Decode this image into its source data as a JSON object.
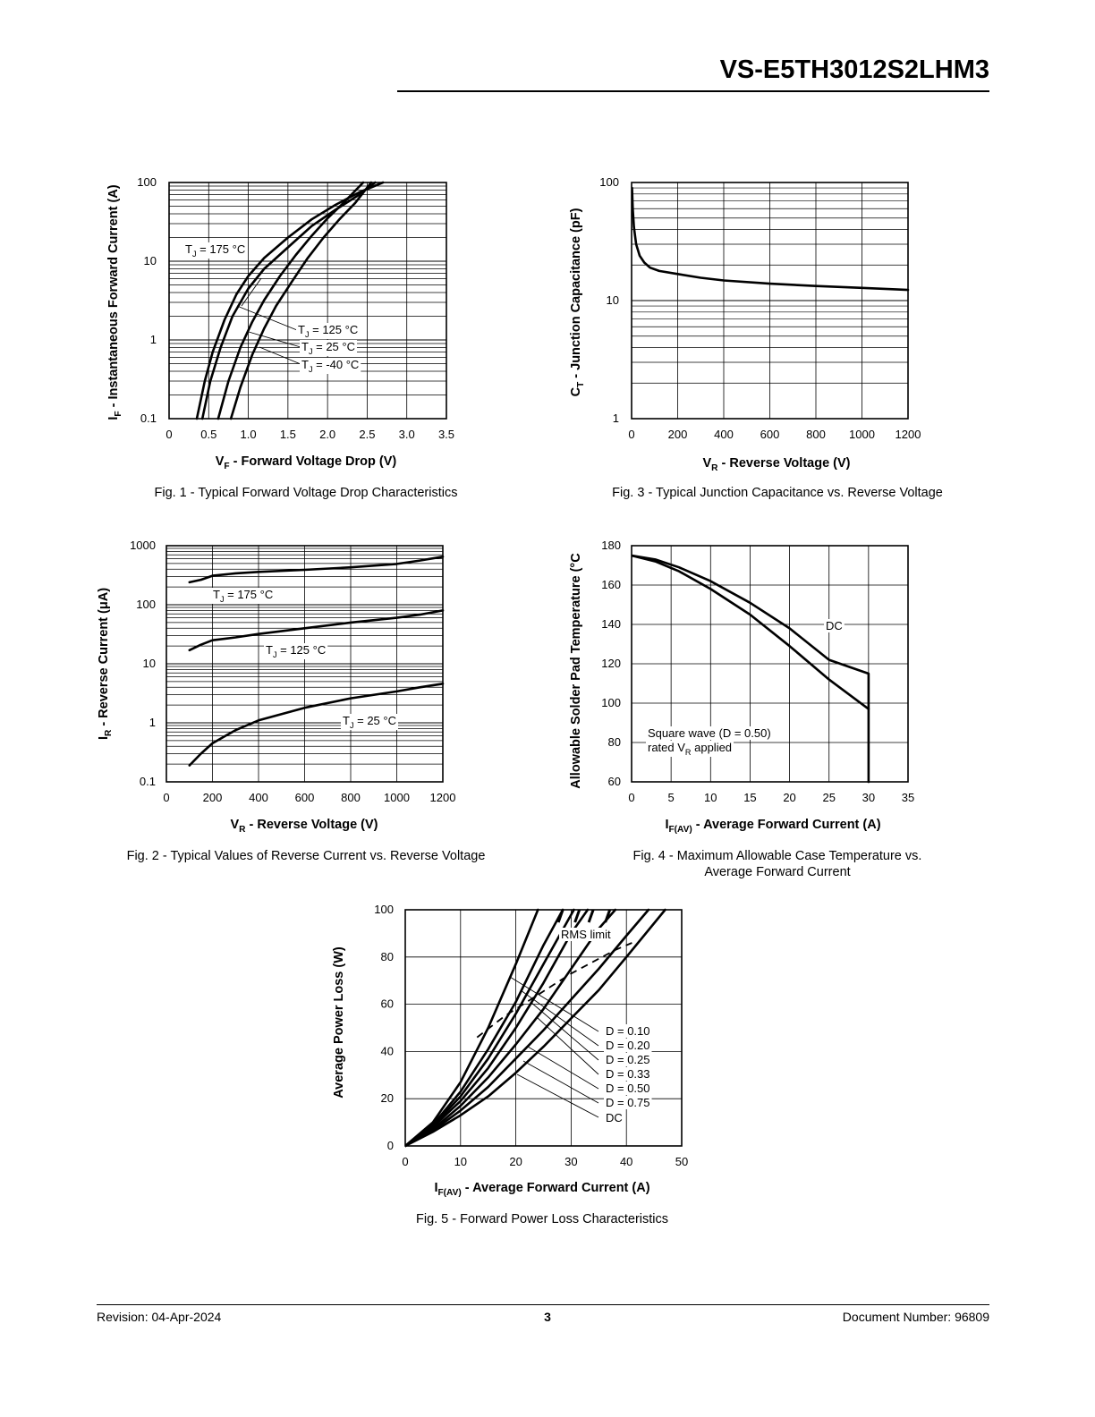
{
  "header": {
    "part_number": "VS-E5TH3012S2LHM3"
  },
  "footer": {
    "revision": "Revision: 04-Apr-2024",
    "page": "3",
    "document_number": "Document Number: 96809"
  },
  "chart_data": [
    {
      "id": "fig1",
      "type": "line",
      "caption": "Fig. 1 - Typical Forward Voltage Drop Characteristics",
      "xlabel": {
        "main": "V",
        "sub": "F",
        "rest": " - Forward Voltage Drop (V)"
      },
      "ylabel": {
        "main": "I",
        "sub": "F",
        "rest": " - Instantaneous Forward Current (A)"
      },
      "xlim": [
        0,
        3.5
      ],
      "ylim": [
        0.1,
        100
      ],
      "ylog": true,
      "xticks": [
        "0",
        "0.5",
        "1.0",
        "1.5",
        "2.0",
        "2.5",
        "3.0",
        "3.5"
      ],
      "yticks": [
        "0.1",
        "1",
        "10",
        "100"
      ],
      "series": [
        {
          "name": "TJ = 175 °C",
          "x": [
            0.35,
            0.45,
            0.55,
            0.7,
            0.85,
            1.0,
            1.2,
            1.5,
            1.8,
            2.1,
            2.4,
            2.7
          ],
          "y": [
            0.1,
            0.3,
            0.7,
            1.8,
            3.8,
            6.5,
            11,
            20,
            34,
            52,
            75,
            100
          ]
        },
        {
          "name": "TJ = 125 °C",
          "x": [
            0.42,
            0.52,
            0.65,
            0.8,
            1.0,
            1.2,
            1.5,
            1.8,
            2.1,
            2.4,
            2.6
          ],
          "y": [
            0.1,
            0.3,
            0.8,
            2,
            4.5,
            8,
            15,
            28,
            45,
            70,
            100
          ]
        },
        {
          "name": "TJ = 25 °C",
          "x": [
            0.62,
            0.75,
            0.9,
            1.05,
            1.2,
            1.4,
            1.6,
            1.8,
            2.0,
            2.2,
            2.45
          ],
          "y": [
            0.1,
            0.3,
            0.8,
            1.7,
            3.2,
            6.5,
            12,
            21,
            35,
            55,
            100
          ]
        },
        {
          "name": "TJ = -40 °C",
          "x": [
            0.78,
            0.9,
            1.05,
            1.2,
            1.35,
            1.55,
            1.75,
            1.95,
            2.15,
            2.35,
            2.55
          ],
          "y": [
            0.1,
            0.25,
            0.65,
            1.4,
            2.7,
            5.5,
            11,
            20,
            34,
            55,
            100
          ]
        }
      ],
      "labels": [
        {
          "pre": "T",
          "sub": "J",
          "post": " = 175 °C"
        },
        {
          "pre": "T",
          "sub": "J",
          "post": " = 125 °C"
        },
        {
          "pre": "T",
          "sub": "J",
          "post": " = 25 °C"
        },
        {
          "pre": "T",
          "sub": "J",
          "post": " = -40 °C"
        }
      ]
    },
    {
      "id": "fig3",
      "type": "line",
      "caption": "Fig. 3 - Typical Junction Capacitance vs. Reverse Voltage",
      "xlabel": {
        "main": "V",
        "sub": "R",
        "rest": " - Reverse Voltage (V)"
      },
      "ylabel": {
        "main": "C",
        "sub": "T",
        "rest": " - Junction Capacitance (pF)"
      },
      "xlim": [
        0,
        1200
      ],
      "ylim": [
        1,
        100
      ],
      "ylog": true,
      "xticks": [
        "0",
        "200",
        "400",
        "600",
        "800",
        "1000",
        "1200"
      ],
      "yticks": [
        "1",
        "10",
        "100"
      ],
      "series": [
        {
          "name": "CT",
          "x": [
            2,
            5,
            10,
            20,
            35,
            55,
            80,
            120,
            200,
            300,
            400,
            600,
            800,
            1000,
            1200
          ],
          "y": [
            90,
            60,
            42,
            30,
            24,
            21,
            19,
            17.8,
            16.8,
            15.6,
            14.8,
            13.9,
            13.3,
            12.8,
            12.3
          ]
        }
      ]
    },
    {
      "id": "fig2",
      "type": "line",
      "caption": "Fig. 2 - Typical Values of Reverse Current vs. Reverse Voltage",
      "xlabel": {
        "main": "V",
        "sub": "R",
        "rest": " - Reverse Voltage (V)"
      },
      "ylabel": {
        "main": "I",
        "sub": "R",
        "rest": " - Reverse Current (μA)"
      },
      "xlim": [
        0,
        1200
      ],
      "ylim": [
        0.1,
        1000
      ],
      "ylog": true,
      "xticks": [
        "0",
        "200",
        "400",
        "600",
        "800",
        "1000",
        "1200"
      ],
      "yticks": [
        "0.1",
        "1",
        "10",
        "100",
        "1000"
      ],
      "series": [
        {
          "name": "TJ = 175 °C",
          "x": [
            100,
            150,
            200,
            300,
            400,
            600,
            800,
            1000,
            1100,
            1200
          ],
          "y": [
            240,
            265,
            310,
            340,
            360,
            390,
            430,
            490,
            560,
            650
          ]
        },
        {
          "name": "TJ = 125 °C",
          "x": [
            100,
            150,
            200,
            300,
            400,
            600,
            800,
            1000,
            1100,
            1200
          ],
          "y": [
            17,
            21,
            25,
            28,
            32,
            40,
            50,
            60,
            68,
            80
          ]
        },
        {
          "name": "TJ = 25 °C",
          "x": [
            100,
            150,
            200,
            300,
            400,
            600,
            800,
            1000,
            1100,
            1200
          ],
          "y": [
            0.19,
            0.3,
            0.45,
            0.75,
            1.1,
            1.8,
            2.6,
            3.4,
            4.0,
            4.6
          ]
        }
      ],
      "labels": [
        {
          "pre": "T",
          "sub": "J",
          "post": " = 175 °C"
        },
        {
          "pre": "T",
          "sub": "J",
          "post": " = 125 °C"
        },
        {
          "pre": "T",
          "sub": "J",
          "post": " = 25 °C"
        }
      ]
    },
    {
      "id": "fig4",
      "type": "line",
      "caption": "Fig. 4 - Maximum Allowable Case Temperature vs.",
      "caption2": "Average Forward Current",
      "xlabel": {
        "main": "I",
        "sub": "F(AV)",
        "rest": " - Average Forward Current (A)"
      },
      "ylabel": {
        "main": "Allowable Solder Pad Temperature (°C",
        "sub": "",
        "rest": ""
      },
      "xlim": [
        0,
        35
      ],
      "ylim": [
        60,
        180
      ],
      "ylog": false,
      "xticks": [
        "0",
        "5",
        "10",
        "15",
        "20",
        "25",
        "30",
        "35"
      ],
      "yticks": [
        "60",
        "80",
        "100",
        "120",
        "140",
        "160",
        "180"
      ],
      "series": [
        {
          "name": "DC",
          "x": [
            0,
            3,
            6,
            10,
            15,
            20,
            25,
            30,
            30
          ],
          "y": [
            175,
            173,
            169,
            162,
            151,
            138,
            122,
            115,
            60
          ]
        },
        {
          "name": "Square wave (D = 0.50)",
          "x": [
            0,
            3,
            6,
            10,
            15,
            20,
            25,
            30
          ],
          "y": [
            175,
            172,
            167,
            158,
            145,
            129,
            112,
            97
          ]
        }
      ],
      "labels": [
        {
          "pre": "DC",
          "sub": "",
          "post": ""
        },
        {
          "pre": "Square wave (D = 0.50)",
          "sub": "",
          "post": ""
        },
        {
          "pre": "rated V",
          "sub": "R",
          "post": " applied"
        }
      ]
    },
    {
      "id": "fig5",
      "type": "line",
      "caption": "Fig. 5 - Forward Power Loss Characteristics",
      "xlabel": {
        "main": "I",
        "sub": "F(AV)",
        "rest": " - Average Forward Current (A)"
      },
      "ylabel": {
        "main": "Average Power Loss (W)",
        "sub": "",
        "rest": ""
      },
      "xlim": [
        0,
        50
      ],
      "ylim": [
        0,
        100
      ],
      "ylog": false,
      "xticks": [
        "0",
        "10",
        "20",
        "30",
        "40",
        "50"
      ],
      "yticks": [
        "0",
        "20",
        "40",
        "60",
        "80",
        "100"
      ],
      "series": [
        {
          "name": "D = 0.10",
          "x": [
            0,
            5,
            10,
            15,
            20,
            24
          ],
          "y": [
            0,
            10,
            27,
            50,
            77,
            100
          ]
        },
        {
          "name": "D = 0.20",
          "x": [
            0,
            5,
            10,
            15,
            20,
            25,
            28.5
          ],
          "y": [
            0,
            9,
            23,
            41,
            61,
            85,
            100
          ]
        },
        {
          "name": "D = 0.25",
          "x": [
            0,
            5,
            10,
            15,
            20,
            25,
            30.5
          ],
          "y": [
            0,
            8.5,
            21,
            37,
            56,
            77,
            100
          ]
        },
        {
          "name": "D = 0.33",
          "x": [
            0,
            5,
            10,
            15,
            20,
            25,
            30,
            33
          ],
          "y": [
            0,
            8,
            19,
            33,
            50,
            69,
            90,
            100
          ]
        },
        {
          "name": "D = 0.50",
          "x": [
            0,
            5,
            10,
            15,
            20,
            25,
            30,
            35,
            38
          ],
          "y": [
            0,
            7,
            17,
            29,
            43,
            58,
            75,
            92,
            100
          ]
        },
        {
          "name": "D = 0.75",
          "x": [
            0,
            5,
            10,
            15,
            20,
            25,
            30,
            35,
            40,
            44
          ],
          "y": [
            0,
            6.5,
            15,
            25,
            37,
            49,
            62,
            75,
            89,
            100
          ]
        },
        {
          "name": "DC",
          "x": [
            0,
            5,
            10,
            15,
            20,
            25,
            30,
            35,
            40,
            47
          ],
          "y": [
            0,
            6,
            13,
            21,
            31,
            42,
            54,
            66,
            80,
            100
          ]
        }
      ],
      "rms_limit": {
        "x": [
          13,
          18,
          22,
          26,
          30,
          34,
          38,
          41
        ],
        "y": [
          46,
          55,
          61,
          67,
          73,
          78,
          83,
          86
        ]
      },
      "labels": [
        {
          "pre": "RMS limit",
          "sub": "",
          "post": ""
        },
        {
          "pre": "D = 0.10",
          "sub": "",
          "post": ""
        },
        {
          "pre": "D = 0.20",
          "sub": "",
          "post": ""
        },
        {
          "pre": "D = 0.25",
          "sub": "",
          "post": ""
        },
        {
          "pre": "D = 0.33",
          "sub": "",
          "post": ""
        },
        {
          "pre": "D = 0.50",
          "sub": "",
          "post": ""
        },
        {
          "pre": "D = 0.75",
          "sub": "",
          "post": ""
        },
        {
          "pre": "DC",
          "sub": "",
          "post": ""
        }
      ]
    }
  ]
}
